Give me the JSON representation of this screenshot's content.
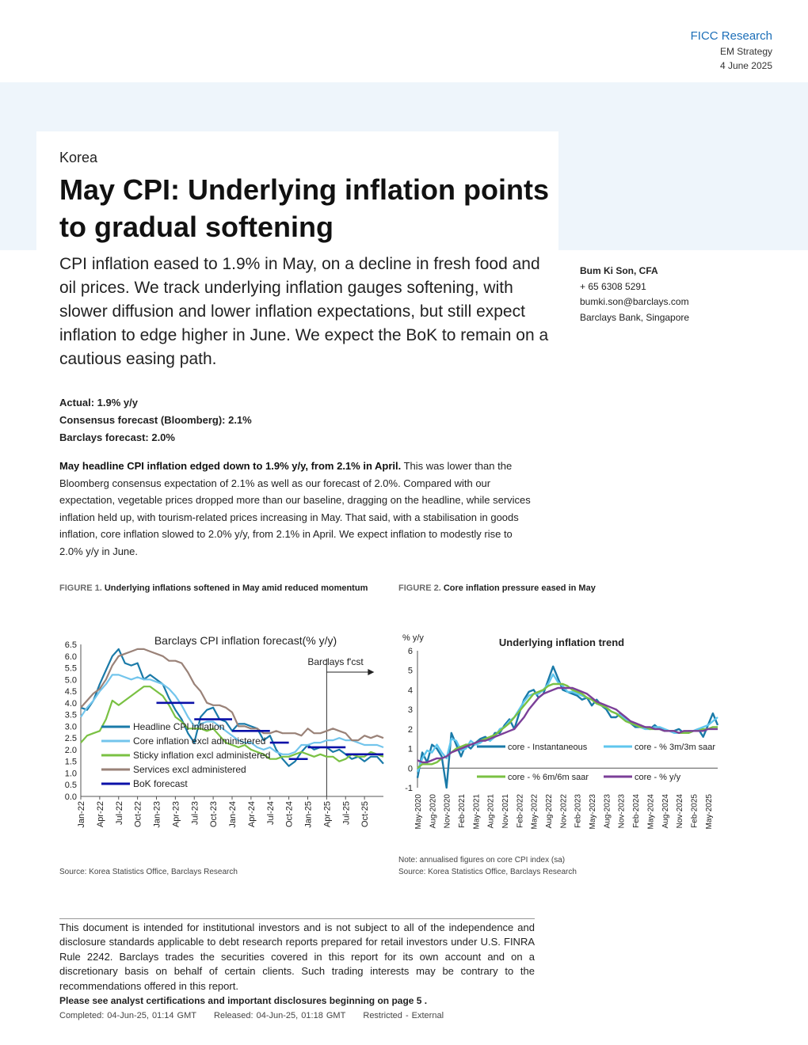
{
  "header": {
    "brand": "FICC Research",
    "desk": "EM Strategy",
    "date": "4 June 2025"
  },
  "article": {
    "region": "Korea",
    "title": "May CPI: Underlying inflation points to gradual softening",
    "intro": "CPI inflation eased to 1.9% in May, on a decline in fresh food and oil prices. We track underlying inflation gauges softening, with slower diffusion and lower inflation expectations, but still expect inflation to edge higher in June. We expect the BoK to remain on a cautious easing path.",
    "actual": "Actual: 1.9% y/y",
    "consensus": "Consensus forecast (Bloomberg): 2.1%",
    "barclays_forecast": "Barclays forecast: 2.0%",
    "para_lead": "May headline CPI inflation edged down to 1.9% y/y, from 2.1% in April.",
    "para_body": " This was lower than the Bloomberg consensus expectation of 2.1% as well as our forecast of 2.0%. Compared with our expectation, vegetable prices dropped more than our baseline, dragging on the headline, while services inflation held up, with tourism-related prices increasing in May. That said, with a stabilisation in goods inflation, core inflation slowed to 2.0% y/y, from 2.1% in April. We expect inflation to modestly rise to 2.0% y/y in June."
  },
  "author": {
    "name": "Bum Ki Son, CFA",
    "phone": "+ 65 6308 5291",
    "email": "bumki.son@barclays.com",
    "entity": "Barclays Bank, Singapore"
  },
  "figure1": {
    "label": "FIGURE 1.",
    "caption": "Underlying inflations softened in May amid reduced momentum",
    "source": "Source: Korea Statistics Office, Barclays Research"
  },
  "figure2": {
    "label": "FIGURE 2.",
    "caption": "Core inflation pressure eased in May",
    "note": "Note: annualised figures on core CPI index (sa)",
    "source": "Source: Korea Statistics Office, Barclays Research"
  },
  "disclaimer": {
    "text": "This document is intended for institutional investors and is not subject to all of the independence and disclosure standards applicable to debt research reports prepared for retail investors under U.S. FINRA Rule 2242. Barclays trades the securities covered in this report for its own account and on a discretionary basis on behalf of certain clients. Such trading interests may be contrary to the recommendations offered in this report.",
    "certifications": "Please see analyst certifications and important disclosures beginning on page 5 .",
    "completed": "Completed: 04-Jun-25, 01:14 GMT",
    "released": "Released: 04-Jun-25, 01:18 GMT",
    "classification": "Restricted - External"
  },
  "chart_data": [
    {
      "type": "line",
      "title": "Barclays CPI inflation forecast(% y/y)",
      "annotation": "Barclays f'cst",
      "ylim": [
        0,
        6.5
      ],
      "yticks": [
        "0.0",
        "0.5",
        "1.0",
        "1.5",
        "2.0",
        "2.5",
        "3.0",
        "3.5",
        "4.0",
        "4.5",
        "5.0",
        "5.5",
        "6.0",
        "6.5"
      ],
      "xticks": [
        "Jan-22",
        "Apr-22",
        "Jul-22",
        "Oct-22",
        "Jan-23",
        "Apr-23",
        "Jul-23",
        "Oct-23",
        "Jan-24",
        "Apr-24",
        "Jul-24",
        "Oct-24",
        "Jan-25",
        "Apr-25",
        "Jul-25",
        "Oct-25"
      ],
      "legend_position": "bottom-left",
      "colors": {
        "headline": "#1a7aa8",
        "core": "#73c5ec",
        "sticky": "#7ac143",
        "services": "#9a8278",
        "bok": "#0b10a8"
      },
      "series": [
        {
          "name": "Headline CPI inflation",
          "key": "headline",
          "values": [
            3.8,
            3.7,
            4.1,
            4.8,
            5.4,
            6.0,
            6.3,
            5.7,
            5.6,
            5.7,
            5.0,
            5.2,
            5.0,
            4.8,
            4.2,
            3.7,
            3.3,
            2.7,
            2.3,
            3.4,
            3.7,
            3.8,
            3.3,
            3.2,
            2.8,
            3.1,
            3.1,
            3.0,
            2.9,
            2.4,
            2.6,
            2.0,
            1.6,
            1.3,
            1.5,
            1.9,
            2.2,
            2.0,
            2.1,
            2.1,
            1.9,
            2.0,
            1.8,
            1.6,
            1.7,
            1.5,
            1.7,
            1.7,
            1.4
          ]
        },
        {
          "name": "Core inflation excl administered",
          "key": "core",
          "values": [
            3.4,
            3.8,
            4.1,
            4.5,
            4.8,
            5.2,
            5.2,
            5.1,
            5.0,
            5.1,
            5.0,
            5.0,
            4.9,
            4.8,
            4.6,
            4.3,
            3.9,
            3.4,
            3.0,
            3.1,
            3.2,
            3.2,
            3.0,
            2.8,
            2.6,
            2.4,
            2.3,
            2.3,
            2.1,
            2.0,
            2.1,
            1.9,
            1.8,
            1.8,
            1.9,
            2.2,
            2.2,
            2.3,
            2.3,
            2.4,
            2.4,
            2.5,
            2.4,
            2.4,
            2.3,
            2.2,
            2.2,
            2.2,
            2.1
          ]
        },
        {
          "name": "Sticky inflation excl administered",
          "key": "sticky",
          "values": [
            2.3,
            2.6,
            2.7,
            2.8,
            3.3,
            4.1,
            3.9,
            4.1,
            4.3,
            4.5,
            4.7,
            4.7,
            4.5,
            4.3,
            3.9,
            3.4,
            3.2,
            2.9,
            2.9,
            2.9,
            2.8,
            2.9,
            2.6,
            2.3,
            2.2,
            2.1,
            2.2,
            2.0,
            1.9,
            1.8,
            1.6,
            1.6,
            1.7,
            1.7,
            1.8,
            1.9,
            1.8,
            1.7,
            1.8,
            1.7,
            1.7,
            1.5,
            1.6,
            1.8,
            1.7,
            1.7,
            1.9,
            1.8,
            1.7
          ]
        },
        {
          "name": "Services excl administered",
          "key": "services",
          "values": [
            3.8,
            4.1,
            4.4,
            4.6,
            5.0,
            5.6,
            6.0,
            6.1,
            6.2,
            6.3,
            6.3,
            6.2,
            6.1,
            6.0,
            5.8,
            5.8,
            5.7,
            5.3,
            4.8,
            4.5,
            4.0,
            3.9,
            3.9,
            3.8,
            3.6,
            3.0,
            3.0,
            2.9,
            2.9,
            2.7,
            2.7,
            2.8,
            2.7,
            2.7,
            2.7,
            2.6,
            2.9,
            2.7,
            2.7,
            2.8,
            2.9,
            2.8,
            2.7,
            2.4,
            2.4,
            2.6,
            2.5,
            2.6,
            2.5
          ]
        },
        {
          "name": "BoK forecast",
          "key": "bok",
          "segments": [
            {
              "from": "Jan-23",
              "to": "Jun-23",
              "value": 4.0
            },
            {
              "from": "Jul-23",
              "to": "Dec-23",
              "value": 3.3
            },
            {
              "from": "Jan-24",
              "to": "Jun-24",
              "value": 2.8
            },
            {
              "from": "Jul-24",
              "to": "Sep-24",
              "value": 2.3
            },
            {
              "from": "Oct-24",
              "to": "Dec-24",
              "value": 1.6
            },
            {
              "from": "Jan-25",
              "to": "Jun-25",
              "value": 2.1
            },
            {
              "from": "Jul-25",
              "to": "Dec-25",
              "value": 1.8
            }
          ]
        }
      ]
    },
    {
      "type": "line",
      "title": "Underlying inflation trend",
      "ylabel": "% y/y",
      "ylim": [
        -1,
        6
      ],
      "yticks": [
        "-1",
        "0",
        "1",
        "2",
        "3",
        "4",
        "5",
        "6"
      ],
      "xticks": [
        "May-2020",
        "Aug-2020",
        "Nov-2020",
        "Feb-2021",
        "May-2021",
        "Aug-2021",
        "Nov-2021",
        "Feb-2022",
        "May-2022",
        "Aug-2022",
        "Nov-2022",
        "Feb-2023",
        "May-2023",
        "Aug-2023",
        "Nov-2023",
        "Feb-2024",
        "May-2024",
        "Aug-2024",
        "Nov-2024",
        "Feb-2025",
        "May-2025"
      ],
      "legend_position": "bottom",
      "colors": {
        "inst": "#1a7aa8",
        "m3": "#5fc6ee",
        "m6": "#7ac143",
        "yoy": "#7b3f98"
      },
      "series": [
        {
          "name": "core - Instantaneous",
          "key": "inst",
          "values": [
            -0.5,
            0.8,
            0.3,
            1.2,
            1.0,
            0.6,
            -1.0,
            1.8,
            1.2,
            0.6,
            1.2,
            1.0,
            1.3,
            1.5,
            1.6,
            1.4,
            1.8,
            1.8,
            2.2,
            2.5,
            2.0,
            2.8,
            3.5,
            3.9,
            4.0,
            3.6,
            3.8,
            4.5,
            5.2,
            4.6,
            4.0,
            3.9,
            3.8,
            3.7,
            3.5,
            3.6,
            3.2,
            3.5,
            3.2,
            3.0,
            2.6,
            2.6,
            2.8,
            2.5,
            2.3,
            2.1,
            2.1,
            2.1,
            2.0,
            2.2,
            2.0,
            1.9,
            1.9,
            1.9,
            2.0,
            1.8,
            1.8,
            1.9,
            2.0,
            1.6,
            2.2,
            2.8,
            2.2
          ]
        },
        {
          "name": "core - % 3m/3m saar",
          "key": "m3",
          "values": [
            -0.2,
            0.5,
            0.9,
            0.8,
            1.2,
            0.8,
            0.5,
            1.5,
            1.4,
            0.9,
            1.0,
            1.4,
            1.2,
            1.3,
            1.5,
            1.4,
            1.6,
            2.0,
            2.1,
            2.4,
            2.6,
            3.0,
            3.4,
            3.7,
            3.8,
            3.8,
            4.0,
            4.3,
            4.8,
            4.4,
            4.2,
            3.9,
            3.9,
            3.8,
            3.7,
            3.6,
            3.5,
            3.3,
            3.2,
            3.1,
            2.9,
            2.8,
            2.7,
            2.5,
            2.3,
            2.2,
            2.1,
            2.0,
            2.0,
            2.1,
            2.1,
            2.0,
            1.9,
            1.8,
            1.8,
            1.8,
            1.9,
            1.9,
            2.0,
            2.1,
            2.2,
            2.4,
            2.6
          ]
        },
        {
          "name": "core - % 6m/6m saar",
          "key": "m6",
          "values": [
            0.0,
            0.2,
            0.2,
            0.2,
            0.3,
            0.5,
            0.6,
            0.8,
            1.0,
            1.1,
            1.2,
            1.2,
            1.3,
            1.4,
            1.5,
            1.6,
            1.7,
            1.9,
            2.1,
            2.3,
            2.6,
            2.9,
            3.2,
            3.5,
            3.8,
            3.9,
            4.0,
            4.2,
            4.3,
            4.3,
            4.3,
            4.2,
            4.0,
            3.9,
            3.8,
            3.6,
            3.5,
            3.3,
            3.2,
            3.1,
            2.9,
            2.8,
            2.6,
            2.4,
            2.3,
            2.2,
            2.1,
            2.1,
            2.0,
            2.0,
            2.0,
            1.9,
            1.9,
            1.9,
            1.8,
            1.8,
            1.8,
            1.9,
            1.9,
            2.0,
            2.0,
            2.1,
            2.1
          ]
        },
        {
          "name": "core - % y/y",
          "key": "yoy",
          "values": [
            0.4,
            0.3,
            0.3,
            0.4,
            0.5,
            0.5,
            0.6,
            0.8,
            0.9,
            1.0,
            1.1,
            1.2,
            1.3,
            1.4,
            1.4,
            1.5,
            1.6,
            1.7,
            1.8,
            1.9,
            2.0,
            2.3,
            2.6,
            3.0,
            3.3,
            3.6,
            3.8,
            3.9,
            4.0,
            4.1,
            4.1,
            4.1,
            4.1,
            4.0,
            3.9,
            3.8,
            3.6,
            3.4,
            3.3,
            3.2,
            3.1,
            3.0,
            2.8,
            2.6,
            2.4,
            2.3,
            2.2,
            2.1,
            2.1,
            2.0,
            2.0,
            1.9,
            1.9,
            1.9,
            1.8,
            1.9,
            1.9,
            1.9,
            1.9,
            1.9,
            2.0,
            2.0,
            2.0
          ]
        }
      ]
    }
  ]
}
